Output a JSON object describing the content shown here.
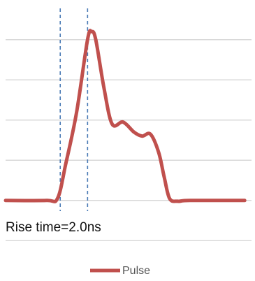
{
  "chart_data": {
    "type": "line",
    "annotation": "Rise time=2.0ns",
    "grid": true,
    "legend_position": "bottom",
    "colors": {
      "series": "#c0504d",
      "grid": "#d9d9d9",
      "marker_lines": "#4a7ab5"
    },
    "markers": [
      {
        "name": "rise-start",
        "x": 2.0
      },
      {
        "name": "rise-end",
        "x": 4.0
      }
    ],
    "xlim": [
      -2,
      16
    ],
    "ylim": [
      -1.1,
      4.5
    ],
    "series": [
      {
        "name": "Pulse",
        "points": [
          [
            -2,
            0
          ],
          [
            1,
            0
          ],
          [
            1.8,
            0.05
          ],
          [
            2.4,
            0.9
          ],
          [
            3.2,
            2.2
          ],
          [
            4.0,
            4.0
          ],
          [
            4.3,
            4.2
          ],
          [
            4.6,
            4.0
          ],
          [
            5.2,
            2.8
          ],
          [
            5.8,
            1.9
          ],
          [
            6.6,
            1.95
          ],
          [
            7.4,
            1.7
          ],
          [
            8.0,
            1.6
          ],
          [
            8.6,
            1.65
          ],
          [
            9.2,
            1.2
          ],
          [
            9.6,
            0.6
          ],
          [
            10.0,
            0.05
          ],
          [
            10.6,
            -0.02
          ],
          [
            11.5,
            0
          ],
          [
            15.5,
            0
          ]
        ]
      }
    ]
  }
}
